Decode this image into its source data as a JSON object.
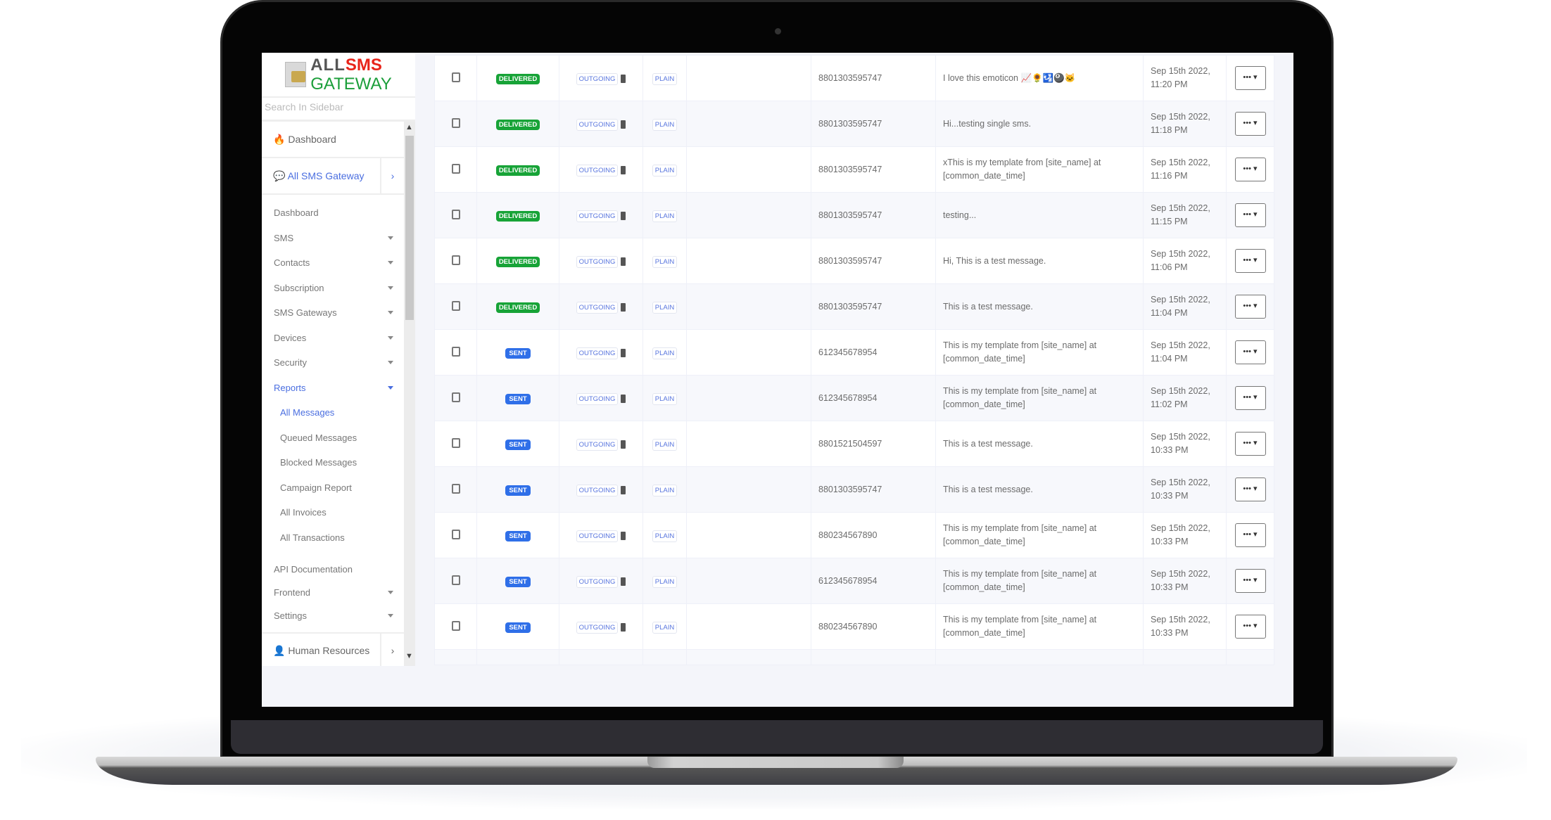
{
  "brand": {
    "logo_all": "ALL",
    "logo_sms": "SMS",
    "logo_gateway": "GATEWAY"
  },
  "sidebar": {
    "search_placeholder": "Search In Sidebar",
    "top_dashboard": "Dashboard",
    "app_link": "All SMS Gateway",
    "items": [
      {
        "label": "Dashboard",
        "caret": false
      },
      {
        "label": "SMS",
        "caret": true
      },
      {
        "label": "Contacts",
        "caret": true
      },
      {
        "label": "Subscription",
        "caret": true
      },
      {
        "label": "SMS Gateways",
        "caret": true
      },
      {
        "label": "Devices",
        "caret": true
      },
      {
        "label": "Security",
        "caret": true
      },
      {
        "label": "Reports",
        "caret": true,
        "active": true
      }
    ],
    "report_sub": [
      "All Messages",
      "Queued Messages",
      "Blocked Messages",
      "Campaign Report",
      "All Invoices",
      "All Transactions"
    ],
    "after": [
      {
        "label": "API Documentation",
        "caret": false
      },
      {
        "label": "Frontend",
        "caret": true
      },
      {
        "label": "Settings",
        "caret": true
      }
    ],
    "bottom_link": "Human Resources"
  },
  "colors": {
    "delivered": "#17a337",
    "sent": "#2f6fe8",
    "accent": "#4a6ee0",
    "logo_red": "#e8241a",
    "logo_green": "#1b9e3a"
  },
  "table": {
    "type_label": "OUTGOING",
    "format_label": "PLAIN",
    "action_label": "••• ▾",
    "rows": [
      {
        "status": "DELIVERED",
        "number": "8801303595747",
        "message": "I love this emoticon 📈🌻🛂🎱🐱",
        "date": "Sep 15th 2022,",
        "time": "11:20 PM"
      },
      {
        "status": "DELIVERED",
        "number": "8801303595747",
        "message": "Hi...testing single sms.",
        "date": "Sep 15th 2022,",
        "time": "11:18 PM"
      },
      {
        "status": "DELIVERED",
        "number": "8801303595747",
        "message": "xThis is my template from [site_name] at [common_date_time]",
        "date": "Sep 15th 2022,",
        "time": "11:16 PM"
      },
      {
        "status": "DELIVERED",
        "number": "8801303595747",
        "message": "testing...",
        "date": "Sep 15th 2022,",
        "time": "11:15 PM"
      },
      {
        "status": "DELIVERED",
        "number": "8801303595747",
        "message": "Hi, This is a test message.",
        "date": "Sep 15th 2022,",
        "time": "11:06 PM"
      },
      {
        "status": "DELIVERED",
        "number": "8801303595747",
        "message": "This is a test message.",
        "date": "Sep 15th 2022,",
        "time": "11:04 PM"
      },
      {
        "status": "SENT",
        "number": "612345678954",
        "message": "This is my template from [site_name] at [common_date_time]",
        "date": "Sep 15th 2022,",
        "time": "11:04 PM"
      },
      {
        "status": "SENT",
        "number": "612345678954",
        "message": "This is my template from [site_name] at [common_date_time]",
        "date": "Sep 15th 2022,",
        "time": "11:02 PM"
      },
      {
        "status": "SENT",
        "number": "8801521504597",
        "message": "This is a test message.",
        "date": "Sep 15th 2022,",
        "time": "10:33 PM"
      },
      {
        "status": "SENT",
        "number": "8801303595747",
        "message": "This is a test message.",
        "date": "Sep 15th 2022,",
        "time": "10:33 PM"
      },
      {
        "status": "SENT",
        "number": "880234567890",
        "message": "This is my template from [site_name] at [common_date_time]",
        "date": "Sep 15th 2022,",
        "time": "10:33 PM"
      },
      {
        "status": "SENT",
        "number": "612345678954",
        "message": "This is my template from [site_name] at [common_date_time]",
        "date": "Sep 15th 2022,",
        "time": "10:33 PM"
      },
      {
        "status": "SENT",
        "number": "880234567890",
        "message": "This is my template from [site_name] at [common_date_time]",
        "date": "Sep 15th 2022,",
        "time": "10:33 PM"
      }
    ]
  }
}
